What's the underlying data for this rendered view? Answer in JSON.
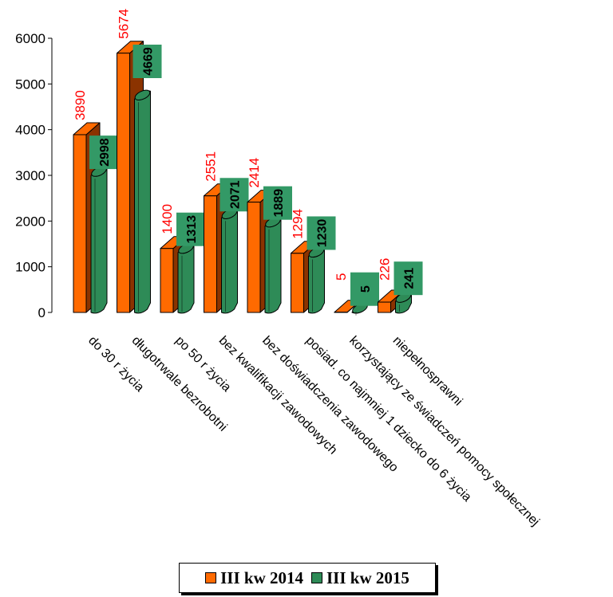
{
  "chart_data": {
    "type": "bar",
    "categories": [
      "do 30 r życia",
      "długotrwale bezrobotni",
      "po 50 r życia",
      "bez kwalifikacji zawodowych",
      "bez doświadczenia zawodowego",
      "posiad. co najmniej 1 dziecko do 6 życia",
      "korzystający ze świadczeń pomocy społecznej",
      "niepełnosprawni"
    ],
    "series": [
      {
        "name": "III kw 2014",
        "values": [
          3890,
          5674,
          1400,
          2551,
          2414,
          1294,
          5,
          226
        ],
        "color": "#ff6a00",
        "label_color": "#ff0000"
      },
      {
        "name": "III kw 2015",
        "values": [
          2998,
          4669,
          1313,
          2071,
          1889,
          1230,
          5,
          241
        ],
        "color": "#2e8b57",
        "label_bg": "#339966"
      }
    ],
    "y_ticks": [
      0,
      1000,
      2000,
      3000,
      4000,
      5000,
      6000
    ],
    "ylim": [
      0,
      6000
    ],
    "grid": false,
    "legend_position": "bottom"
  },
  "legend": {
    "series1_label": "III kw 2014",
    "series2_label": "III kw 2015"
  },
  "colors": {
    "orange_front": "#ff6a00",
    "orange_side": "#8b3300",
    "green_front": "#2e8b57",
    "green_label_bg": "#339966"
  }
}
